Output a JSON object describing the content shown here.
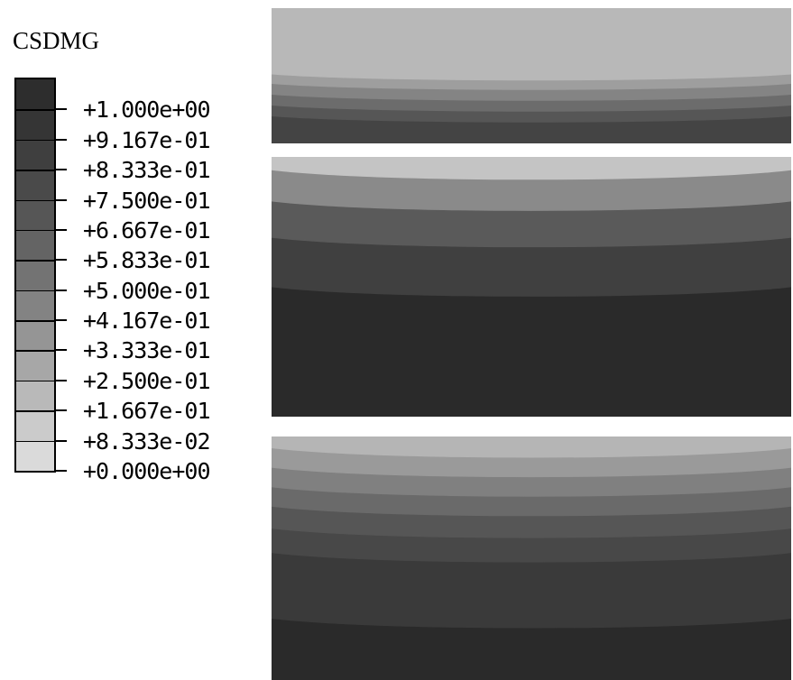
{
  "legend": {
    "title": "CSDMG",
    "ticks": [
      "+1.000e+00",
      "+9.167e-01",
      "+8.333e-01",
      "+7.500e-01",
      "+6.667e-01",
      "+5.833e-01",
      "+5.000e-01",
      "+4.167e-01",
      "+3.333e-01",
      "+2.500e-01",
      "+1.667e-01",
      "+8.333e-02",
      "+0.000e+00"
    ],
    "colors": [
      "#2d2d2d",
      "#353535",
      "#3f3f3f",
      "#4a4a4a",
      "#565656",
      "#646464",
      "#737373",
      "#838383",
      "#959595",
      "#a7a7a7",
      "#b9b9b9",
      "#cbcbcb",
      "#dadada"
    ]
  },
  "panels": [
    {
      "name": "top-panel",
      "bands": [
        {
          "color": "#b8b8b8",
          "depth": 0.55
        },
        {
          "color": "#9e9e9e",
          "depth": 0.62
        },
        {
          "color": "#848484",
          "depth": 0.7
        },
        {
          "color": "#6c6c6c",
          "depth": 0.78
        },
        {
          "color": "#565656",
          "depth": 0.86
        },
        {
          "color": "#444444",
          "depth": 1.0
        }
      ]
    },
    {
      "name": "middle-panel",
      "bands": [
        {
          "color": "#c4c4c4",
          "depth": 0.1
        },
        {
          "color": "#8a8a8a",
          "depth": 0.22
        },
        {
          "color": "#5a5a5a",
          "depth": 0.36
        },
        {
          "color": "#404040",
          "depth": 0.55
        },
        {
          "color": "#2a2a2a",
          "depth": 1.0
        }
      ]
    },
    {
      "name": "bottom-panel",
      "bands": [
        {
          "color": "#b5b5b5",
          "depth": 0.1
        },
        {
          "color": "#9a9a9a",
          "depth": 0.18
        },
        {
          "color": "#808080",
          "depth": 0.26
        },
        {
          "color": "#6a6a6a",
          "depth": 0.34
        },
        {
          "color": "#565656",
          "depth": 0.43
        },
        {
          "color": "#484848",
          "depth": 0.53
        },
        {
          "color": "#3a3a3a",
          "depth": 0.8
        },
        {
          "color": "#2a2a2a",
          "depth": 1.0
        }
      ]
    }
  ]
}
